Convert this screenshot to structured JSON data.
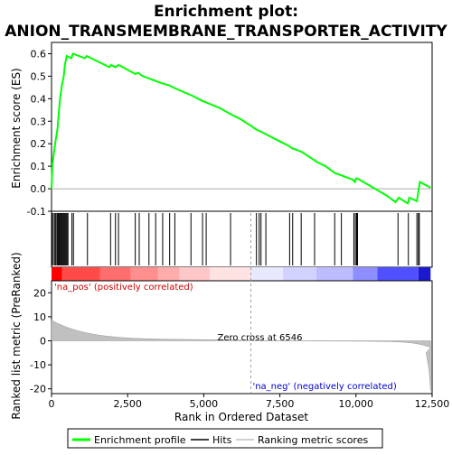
{
  "chart_data": {
    "type": "line",
    "title_line1": "Enrichment plot:",
    "title_line2": "ANION_TRANSMEMBRANE_TRANSPORTER_ACTIVITY",
    "xlabel": "Rank in Ordered Dataset",
    "ylabel_top": "Enrichment score (ES)",
    "ylabel_bottom": "Ranked list metric (PreRanked)",
    "x_range": [
      0,
      12500
    ],
    "es_ylim": [
      -0.1,
      0.65
    ],
    "metric_ylim": [
      -22,
      25
    ],
    "x_ticks": [
      {
        "v": 0,
        "label": "0"
      },
      {
        "v": 2500,
        "label": "2,500"
      },
      {
        "v": 5000,
        "label": "5,000"
      },
      {
        "v": 7500,
        "label": "7,500"
      },
      {
        "v": 10000,
        "label": "10,000"
      },
      {
        "v": 12500,
        "label": "12,500"
      }
    ],
    "es_ticks": [
      {
        "v": -0.1,
        "label": "-0.1"
      },
      {
        "v": 0.0,
        "label": "0.0"
      },
      {
        "v": 0.1,
        "label": "0.1"
      },
      {
        "v": 0.2,
        "label": "0.2"
      },
      {
        "v": 0.3,
        "label": "0.3"
      },
      {
        "v": 0.4,
        "label": "0.4"
      },
      {
        "v": 0.5,
        "label": "0.5"
      },
      {
        "v": 0.6,
        "label": "0.6"
      }
    ],
    "metric_ticks": [
      {
        "v": -20,
        "label": "-20"
      },
      {
        "v": -10,
        "label": "-10"
      },
      {
        "v": 0,
        "label": "0"
      },
      {
        "v": 10,
        "label": "10"
      },
      {
        "v": 20,
        "label": "20"
      }
    ],
    "es_points": [
      [
        0,
        0.0
      ],
      [
        30,
        0.11
      ],
      [
        120,
        0.2
      ],
      [
        200,
        0.27
      ],
      [
        240,
        0.34
      ],
      [
        280,
        0.4
      ],
      [
        330,
        0.45
      ],
      [
        400,
        0.5
      ],
      [
        440,
        0.55
      ],
      [
        500,
        0.59
      ],
      [
        650,
        0.58
      ],
      [
        700,
        0.6
      ],
      [
        1100,
        0.58
      ],
      [
        1150,
        0.59
      ],
      [
        1900,
        0.54
      ],
      [
        1950,
        0.55
      ],
      [
        2100,
        0.54
      ],
      [
        2200,
        0.55
      ],
      [
        2750,
        0.51
      ],
      [
        2850,
        0.515
      ],
      [
        3000,
        0.5
      ],
      [
        3200,
        0.49
      ],
      [
        3400,
        0.48
      ],
      [
        3600,
        0.47
      ],
      [
        3850,
        0.46
      ],
      [
        4000,
        0.45
      ],
      [
        4500,
        0.42
      ],
      [
        4600,
        0.415
      ],
      [
        4950,
        0.39
      ],
      [
        5050,
        0.385
      ],
      [
        5500,
        0.36
      ],
      [
        5900,
        0.33
      ],
      [
        6200,
        0.31
      ],
      [
        6546,
        0.28
      ],
      [
        6700,
        0.265
      ],
      [
        6850,
        0.255
      ],
      [
        7000,
        0.245
      ],
      [
        7500,
        0.21
      ],
      [
        7800,
        0.19
      ],
      [
        7900,
        0.18
      ],
      [
        8200,
        0.165
      ],
      [
        8600,
        0.13
      ],
      [
        8700,
        0.12
      ],
      [
        9000,
        0.1
      ],
      [
        9300,
        0.07
      ],
      [
        9500,
        0.06
      ],
      [
        9900,
        0.04
      ],
      [
        9960,
        0.03
      ],
      [
        10000,
        0.045
      ],
      [
        10050,
        0.045
      ],
      [
        11000,
        -0.03
      ],
      [
        11300,
        -0.06
      ],
      [
        11400,
        -0.04
      ],
      [
        11700,
        -0.065
      ],
      [
        11750,
        -0.04
      ],
      [
        12000,
        -0.055
      ],
      [
        12050,
        -0.01
      ],
      [
        12100,
        0.03
      ],
      [
        12300,
        0.015
      ],
      [
        12450,
        0.005
      ]
    ],
    "hits": [
      20,
      60,
      110,
      140,
      180,
      210,
      240,
      270,
      300,
      330,
      360,
      390,
      420,
      450,
      480,
      510,
      540,
      670,
      720,
      1180,
      1940,
      2100,
      2200,
      2750,
      2880,
      3200,
      3420,
      3650,
      3880,
      4050,
      4580,
      4960,
      5080,
      5880,
      6730,
      6820,
      6880,
      7040,
      7820,
      7920,
      8200,
      8640,
      9300,
      9520,
      9930,
      9980,
      10020,
      10050,
      11380,
      11720,
      12000,
      12050,
      12080
    ],
    "zero_cross_rank": 6546,
    "zero_cross_label": "Zero cross at 6546",
    "pos_label": "'na_pos' (positively correlated)",
    "neg_label": "'na_neg' (negatively correlated)",
    "legend": [
      {
        "label": "Enrichment profile",
        "color": "#00ff00"
      },
      {
        "label": "Hits",
        "color": "#000000"
      },
      {
        "label": "Ranking metric scores",
        "color": "#c0c0c0"
      }
    ],
    "colors": {
      "profile": "#00ff00",
      "hits": "#000000",
      "metric_fill": "#c0c0c0",
      "zero_line": "#a0a0a0"
    },
    "band": [
      {
        "from": 0,
        "to": 350,
        "color": "#ff0000"
      },
      {
        "from": 350,
        "to": 1600,
        "color": "#ff4a4a"
      },
      {
        "from": 1600,
        "to": 2600,
        "color": "#ff6e6e"
      },
      {
        "from": 2600,
        "to": 3500,
        "color": "#ff8e8e"
      },
      {
        "from": 3500,
        "to": 4200,
        "color": "#ffacac"
      },
      {
        "from": 4200,
        "to": 5200,
        "color": "#ffc8c8"
      },
      {
        "from": 5200,
        "to": 6546,
        "color": "#ffe2e2"
      },
      {
        "from": 6546,
        "to": 7600,
        "color": "#e8e8ff"
      },
      {
        "from": 7600,
        "to": 8700,
        "color": "#d2d2ff"
      },
      {
        "from": 8700,
        "to": 9900,
        "color": "#bcbcff"
      },
      {
        "from": 9900,
        "to": 10700,
        "color": "#8e8eff"
      },
      {
        "from": 10700,
        "to": 12050,
        "color": "#5050ff"
      },
      {
        "from": 12050,
        "to": 12450,
        "color": "#1a1acc"
      }
    ]
  }
}
